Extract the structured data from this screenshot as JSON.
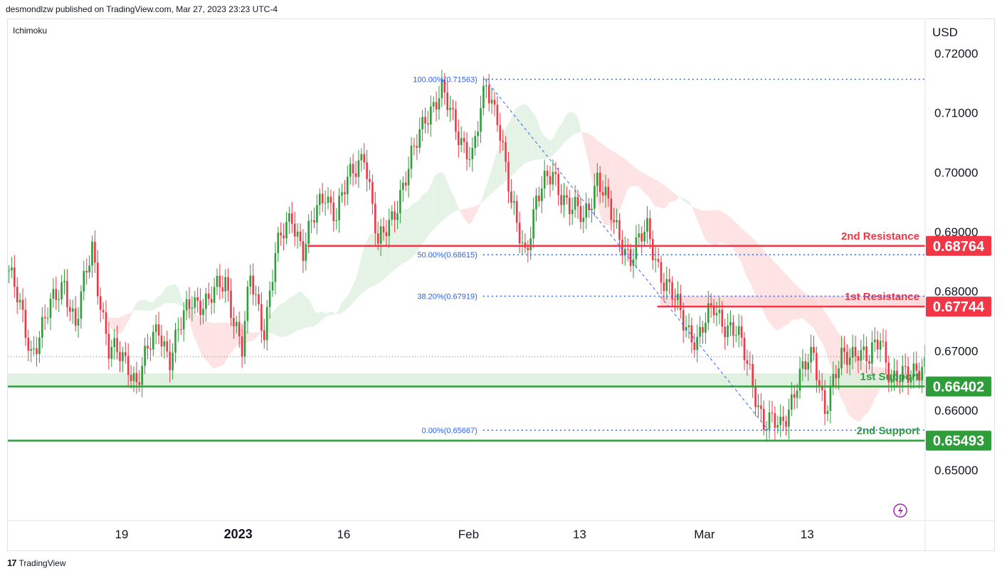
{
  "header": {
    "text": "desmondlzw published on TradingView.com, Mar 27, 2023 23:23 UTC-4"
  },
  "indicator": {
    "name": "Ichimoku"
  },
  "footer": {
    "brand": "TradingView"
  },
  "colors": {
    "up": "#2e9d3a",
    "down": "#f23645",
    "resistance": "#f23645",
    "support": "#2e9d3a",
    "fib": "#2962ff",
    "cloud_green": "#e5f3e6",
    "cloud_red": "#fde3e3"
  },
  "chart_data": {
    "type": "candlestick",
    "currency": "USD",
    "y_range": [
      0.6415,
      0.725
    ],
    "y_ticks": [
      "0.72000",
      "0.71000",
      "0.70000",
      "0.69000",
      "0.68000",
      "0.67000",
      "0.66000",
      "0.65000"
    ],
    "y_tick_values": [
      0.72,
      0.71,
      0.7,
      0.69,
      0.68,
      0.67,
      0.66,
      0.65
    ],
    "x_ticks": [
      {
        "label": "19",
        "bar": 41,
        "bold": false
      },
      {
        "label": "2023",
        "bar": 83,
        "bold": true
      },
      {
        "label": "16",
        "bar": 121,
        "bold": false
      },
      {
        "label": "Feb",
        "bar": 166,
        "bold": false
      },
      {
        "label": "13",
        "bar": 206,
        "bold": false
      },
      {
        "label": "Mar",
        "bar": 251,
        "bold": false
      },
      {
        "label": "13",
        "bar": 288,
        "bold": false
      }
    ],
    "bars": 331,
    "anchors": [
      [
        0,
        0.6835
      ],
      [
        8,
        0.67
      ],
      [
        14,
        0.676
      ],
      [
        20,
        0.682
      ],
      [
        24,
        0.674
      ],
      [
        30,
        0.6875
      ],
      [
        36,
        0.67
      ],
      [
        43,
        0.668
      ],
      [
        46,
        0.665
      ],
      [
        54,
        0.674
      ],
      [
        58,
        0.669
      ],
      [
        66,
        0.679
      ],
      [
        72,
        0.678
      ],
      [
        78,
        0.682
      ],
      [
        84,
        0.67
      ],
      [
        87,
        0.682
      ],
      [
        92,
        0.674
      ],
      [
        96,
        0.686
      ],
      [
        102,
        0.693
      ],
      [
        106,
        0.687
      ],
      [
        114,
        0.697
      ],
      [
        118,
        0.693
      ],
      [
        122,
        0.698
      ],
      [
        128,
        0.704
      ],
      [
        133,
        0.687
      ],
      [
        138,
        0.693
      ],
      [
        144,
        0.7
      ],
      [
        150,
        0.71
      ],
      [
        156,
        0.713
      ],
      [
        160,
        0.709
      ],
      [
        167,
        0.702
      ],
      [
        172,
        0.715
      ],
      [
        176,
        0.71
      ],
      [
        181,
        0.694
      ],
      [
        186,
        0.687
      ],
      [
        190,
        0.695
      ],
      [
        196,
        0.7
      ],
      [
        202,
        0.694
      ],
      [
        207,
        0.692
      ],
      [
        212,
        0.6995
      ],
      [
        218,
        0.691
      ],
      [
        224,
        0.686
      ],
      [
        230,
        0.69
      ],
      [
        236,
        0.682
      ],
      [
        243,
        0.675
      ],
      [
        248,
        0.672
      ],
      [
        254,
        0.677
      ],
      [
        262,
        0.673
      ],
      [
        268,
        0.665
      ],
      [
        272,
        0.658
      ],
      [
        278,
        0.657
      ],
      [
        284,
        0.665
      ],
      [
        290,
        0.669
      ],
      [
        294,
        0.661
      ],
      [
        300,
        0.668
      ],
      [
        306,
        0.671
      ],
      [
        310,
        0.668
      ],
      [
        314,
        0.672
      ],
      [
        318,
        0.666
      ],
      [
        324,
        0.665
      ],
      [
        330,
        0.669
      ]
    ],
    "levels": [
      {
        "name": "2nd Resistance",
        "value": 0.68764,
        "label": "0.68764",
        "kind": "resistance"
      },
      {
        "name": "1st Resistance",
        "value": 0.67744,
        "label": "0.67744",
        "kind": "resistance"
      },
      {
        "name": "1st Support",
        "value": 0.66402,
        "label": "0.66402",
        "kind": "support"
      },
      {
        "name": "2nd Support",
        "value": 0.65493,
        "label": "0.65493",
        "kind": "support"
      }
    ],
    "fib_levels": [
      {
        "label": "100.00%(0.71563)",
        "value": 0.71563
      },
      {
        "label": "50.00%(0.68615)",
        "value": 0.68615
      },
      {
        "label": "38.20%(0.67919)",
        "value": 0.67919
      },
      {
        "label": "0.00%(0.65667)",
        "value": 0.65667
      }
    ],
    "fib_swing": {
      "high_bar": 172,
      "high": 0.71563,
      "low_bar": 274,
      "low": 0.65667
    },
    "last_price": 0.669
  }
}
